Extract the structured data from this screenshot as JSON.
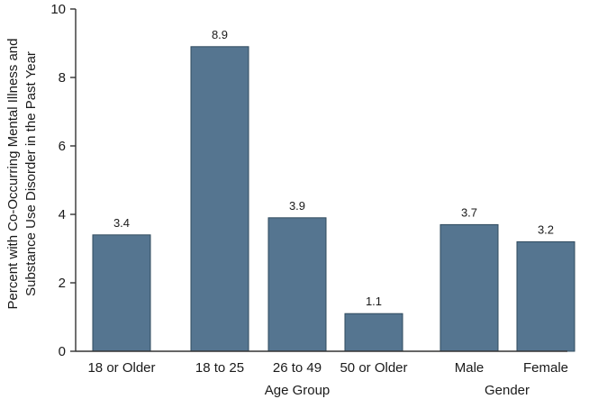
{
  "chart_data": {
    "type": "bar",
    "categories": [
      "18 or Older",
      "18 to 25",
      "26 to 49",
      "50 or Older",
      "Male",
      "Female"
    ],
    "values": [
      3.4,
      8.9,
      3.9,
      1.1,
      3.7,
      3.2
    ],
    "data_labels": [
      "3.4",
      "8.9",
      "3.9",
      "1.1",
      "3.7",
      "3.2"
    ],
    "groups": [
      {
        "label": "Age Group",
        "categories": [
          "18 to 25",
          "26 to 49",
          "50 or Older"
        ]
      },
      {
        "label": "Gender",
        "categories": [
          "Male",
          "Female"
        ]
      }
    ],
    "ylabel_line1": "Percent with Co-Occurring Mental Illness and",
    "ylabel_line2": "Substance Use Disorder in the Past Year",
    "ylim": [
      0,
      10
    ],
    "yticks": [
      0,
      2,
      4,
      6,
      8,
      10
    ],
    "grid": false,
    "bar_color": "#557590"
  }
}
